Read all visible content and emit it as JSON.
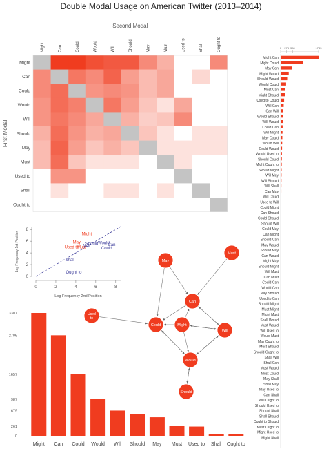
{
  "title": "Double Modal Usage on American Twitter (2013–2014)",
  "colors": {
    "accent": "#f03c1f",
    "grey": "#c4c4c4",
    "axis": "#888888"
  },
  "chart_data": [
    {
      "type": "heatmap",
      "title": "",
      "xlabel": "Second Modal",
      "ylabel": "First Modal",
      "modals": [
        "Might",
        "Can",
        "Could",
        "Would",
        "Will",
        "Should",
        "May",
        "Must",
        "Used to",
        "Shall",
        "Ought to"
      ],
      "matrix": [
        [
          -1,
          1.0,
          1.0,
          0.9,
          0.85,
          0.85,
          0.6,
          0.4,
          0,
          0,
          0.6
        ],
        [
          0.6,
          -1,
          0.7,
          0.6,
          0.8,
          0.5,
          0.35,
          0.45,
          0,
          0.2,
          0
        ],
        [
          0.6,
          0.75,
          -1,
          0.55,
          0.6,
          0.55,
          0.35,
          0.45,
          0,
          0,
          0
        ],
        [
          0.55,
          0.75,
          0.65,
          -1,
          0.7,
          0.5,
          0.3,
          0.15,
          0.45,
          0,
          0
        ],
        [
          0.55,
          0.7,
          0.6,
          0.45,
          -1,
          0.4,
          0.25,
          0.3,
          0.6,
          0,
          0
        ],
        [
          0.4,
          0.75,
          0.55,
          0.4,
          0.45,
          -1,
          0.3,
          0.15,
          0,
          0.15,
          0.15
        ],
        [
          0.35,
          0.8,
          0.5,
          0.3,
          0.4,
          0.3,
          -1,
          0.15,
          0.15,
          0.15,
          0.15
        ],
        [
          0.35,
          0.75,
          0.3,
          0.15,
          0.15,
          0.15,
          0,
          -1,
          0.15,
          0,
          0
        ],
        [
          0,
          0.55,
          0.55,
          0,
          0,
          0,
          0,
          0,
          -1,
          0,
          0
        ],
        [
          0,
          0.15,
          0,
          0,
          0.15,
          0.15,
          0,
          0.15,
          0,
          -1,
          0
        ],
        [
          0,
          0,
          0,
          0,
          0,
          0,
          0,
          0,
          0,
          0,
          -1
        ]
      ]
    },
    {
      "type": "bar",
      "title": "",
      "orientation": "horizontal",
      "ticks": [
        0,
        275,
        550,
        1733
      ],
      "categories": [
        "Might Can",
        "Might Could",
        "May Can",
        "Might Would",
        "Should Would",
        "Would Could",
        "Must Can",
        "Might Should",
        "Used to Could",
        "Will Can",
        "Can Will",
        "Would Should",
        "Will Would",
        "Could Can",
        "Will Might",
        "May Could",
        "Would Will",
        "Could Would",
        "Would Used to",
        "Should Could",
        "Might Ought to",
        "Would Might",
        "Will May",
        "Will Should",
        "Will Shall",
        "Can May",
        "Will Could",
        "Used to Will",
        "Could Might",
        "Can Should",
        "Could Should",
        "Should Will",
        "Could May",
        "Can Might",
        "Should Can",
        "May Would",
        "Should May",
        "Can Would",
        "Might May",
        "Should Might",
        "Will Must",
        "Can Must",
        "Could Can",
        "Would Can",
        "May Should",
        "Used to Can",
        "Should Might",
        "Must Might",
        "Might Must",
        "Shall Would",
        "Must Would",
        "Will Used to",
        "Would Must",
        "May Ought to",
        "Must Should",
        "Should Ought to",
        "Shall Will",
        "Shall Can",
        "Must Would",
        "Must Could",
        "May Shall",
        "Shall May",
        "May Used to",
        "Can Shall",
        "Will Ought to",
        "Should Used to",
        "Should Shall",
        "Shall Should",
        "Ought to Should",
        "Must Ought to",
        "Might Used to",
        "Might Shall"
      ],
      "values": [
        1733,
        1020,
        520,
        370,
        300,
        250,
        220,
        190,
        160,
        140,
        125,
        110,
        100,
        92,
        85,
        78,
        72,
        66,
        60,
        55,
        50,
        46,
        42,
        39,
        36,
        33,
        31,
        29,
        27,
        25,
        23,
        21,
        19,
        18,
        17,
        16,
        15,
        14,
        13,
        12,
        11,
        10,
        9,
        9,
        8,
        8,
        7,
        7,
        6,
        6,
        5,
        5,
        5,
        4,
        4,
        4,
        3,
        3,
        3,
        3,
        3,
        2,
        2,
        2,
        2,
        2,
        2,
        1,
        1,
        1,
        1,
        1
      ]
    },
    {
      "type": "scatter",
      "title": "",
      "xlabel": "Log Frequency 2nd Position",
      "ylabel": "Log Frequency 1st Position",
      "xlim": [
        0,
        8.5
      ],
      "ylim": [
        0,
        8.5
      ],
      "xticks": [
        0,
        2,
        4,
        6,
        8
      ],
      "yticks": [
        0,
        2,
        4,
        6,
        8
      ],
      "points": [
        {
          "label": "Might",
          "x": 5.1,
          "y": 7.0,
          "color": "#f03c1f"
        },
        {
          "label": "May",
          "x": 4.1,
          "y": 5.6,
          "color": "#f03c1f"
        },
        {
          "label": "Used to",
          "x": 3.6,
          "y": 4.8,
          "color": "#f03c1f"
        },
        {
          "label": "Must",
          "x": 4.6,
          "y": 4.8,
          "color": "#f03c1f"
        },
        {
          "label": "Should",
          "x": 5.6,
          "y": 5.4,
          "color": "#3b3b9a"
        },
        {
          "label": "Would",
          "x": 6.8,
          "y": 5.5,
          "color": "#3b3b9a"
        },
        {
          "label": "Will",
          "x": 5.1,
          "y": 5.0,
          "color": "#3b3b9a"
        },
        {
          "label": "Can",
          "x": 7.6,
          "y": 5.2,
          "color": "#3b3b9a"
        },
        {
          "label": "Could",
          "x": 7.1,
          "y": 4.6,
          "color": "#3b3b9a"
        },
        {
          "label": "Shall",
          "x": 3.4,
          "y": 2.6,
          "color": "#3b3b9a"
        },
        {
          "label": "Ought to",
          "x": 3.8,
          "y": 0.5,
          "color": "#3b3b9a"
        }
      ]
    },
    {
      "type": "network",
      "title": "",
      "nodes": [
        {
          "id": "Can",
          "label": "Can"
        },
        {
          "id": "Could",
          "label": "Could"
        },
        {
          "id": "Might",
          "label": "Might"
        },
        {
          "id": "Will",
          "label": "Will"
        },
        {
          "id": "Would",
          "label": "Would"
        },
        {
          "id": "Should",
          "label": "Should"
        },
        {
          "id": "May",
          "label": "May"
        },
        {
          "id": "Must",
          "label": "Must"
        },
        {
          "id": "Used to",
          "label": "Used to"
        }
      ],
      "edges": [
        [
          "May",
          "Can"
        ],
        [
          "Must",
          "Can"
        ],
        [
          "Used to",
          "Could"
        ],
        [
          "Might",
          "Can"
        ],
        [
          "Might",
          "Could"
        ],
        [
          "Might",
          "Would"
        ],
        [
          "Might",
          "Will"
        ],
        [
          "Can",
          "Could"
        ],
        [
          "Can",
          "Will"
        ],
        [
          "Will",
          "Would"
        ],
        [
          "Would",
          "Could"
        ],
        [
          "Would",
          "Should"
        ],
        [
          "Will",
          "Can"
        ],
        [
          "Could",
          "Would"
        ],
        [
          "May",
          "Could"
        ],
        [
          "Should",
          "Would"
        ],
        [
          "Will",
          "Might"
        ],
        [
          "Would",
          "Will"
        ]
      ]
    },
    {
      "type": "bar",
      "title": "",
      "categories": [
        "Might",
        "Can",
        "Could",
        "Would",
        "Will",
        "Should",
        "May",
        "Must",
        "Used to",
        "Shall",
        "Ought to"
      ],
      "values": [
        3307,
        2706,
        1657,
        987,
        679,
        590,
        500,
        261,
        250,
        40,
        40
      ],
      "yticks": [
        0,
        261,
        679,
        987,
        1657,
        2706,
        3307
      ]
    }
  ]
}
